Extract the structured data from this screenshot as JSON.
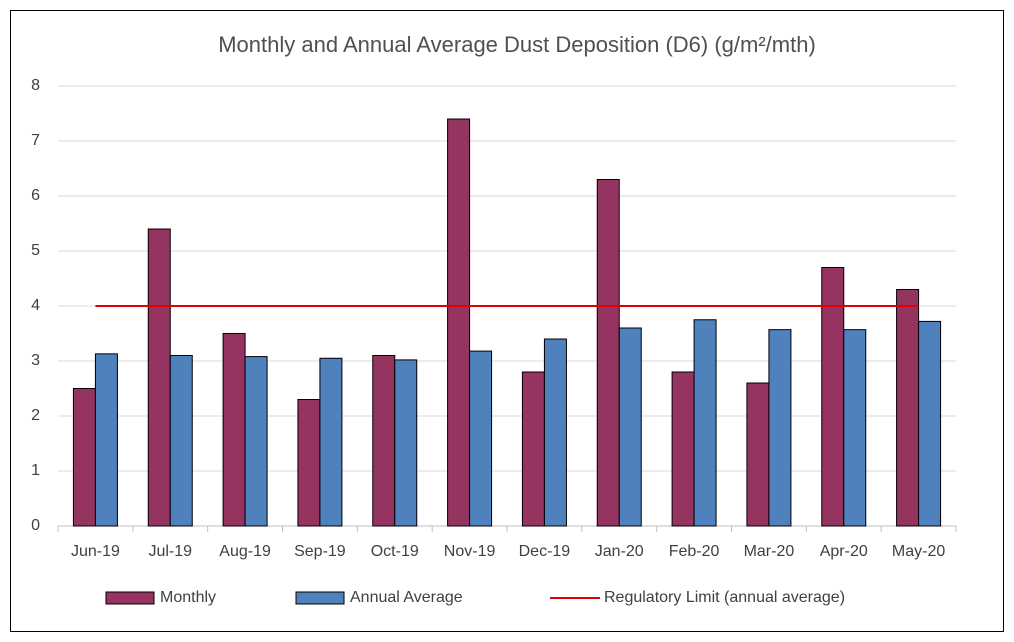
{
  "chart_data": {
    "type": "bar",
    "title": "Monthly and Annual Average Dust Deposition (D6) (g/m²/mth)",
    "categories": [
      "Jun-19",
      "Jul-19",
      "Aug-19",
      "Sep-19",
      "Oct-19",
      "Nov-19",
      "Dec-19",
      "Jan-20",
      "Feb-20",
      "Mar-20",
      "Apr-20",
      "May-20"
    ],
    "series": [
      {
        "name": "Monthly",
        "color": "#953461",
        "type": "bar",
        "values": [
          2.5,
          5.4,
          3.5,
          2.3,
          3.1,
          7.4,
          2.8,
          6.3,
          2.8,
          2.6,
          4.7,
          4.3
        ]
      },
      {
        "name": "Annual Average",
        "color": "#4f81bd",
        "type": "bar",
        "values": [
          3.13,
          3.1,
          3.08,
          3.05,
          3.02,
          3.18,
          3.4,
          3.6,
          3.75,
          3.57,
          3.57,
          3.72
        ]
      },
      {
        "name": "Regulatory Limit (annual average)",
        "color": "#e00000",
        "type": "line",
        "values": [
          4,
          4,
          4,
          4,
          4,
          4,
          4,
          4,
          4,
          4,
          4,
          4
        ]
      }
    ],
    "ylim": [
      0,
      8
    ],
    "yticks": [
      0,
      1,
      2,
      3,
      4,
      5,
      6,
      7,
      8
    ],
    "grid": true,
    "legend": "bottom"
  }
}
